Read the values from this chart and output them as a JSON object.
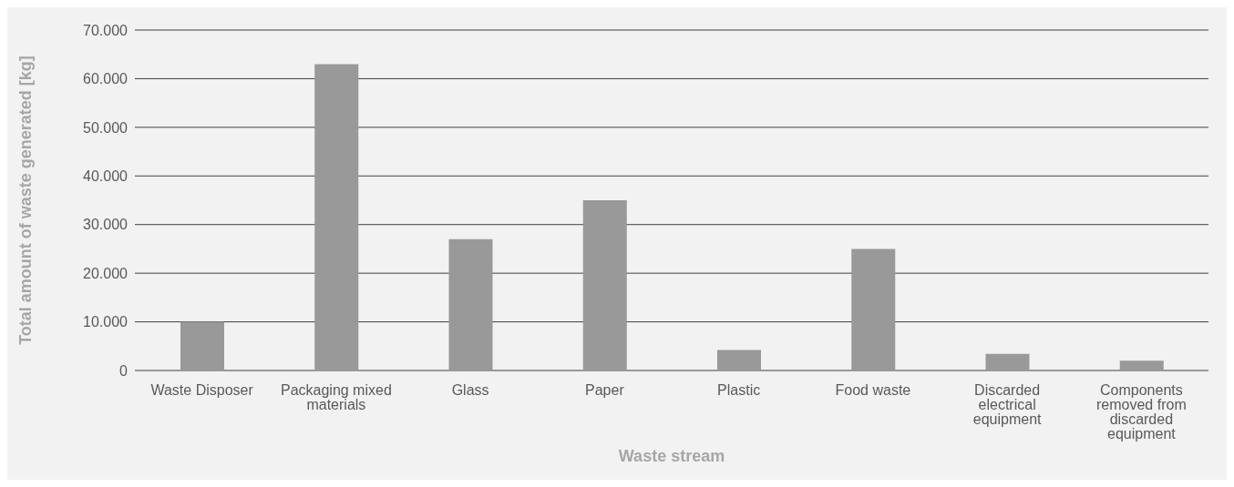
{
  "chart_data": {
    "type": "bar",
    "xlabel": "Waste stream",
    "ylabel": "Total amount of waste generated [kg]",
    "categories": [
      "Waste Disposer",
      "Packaging mixed materials",
      "Glass",
      "Paper",
      "Plastic",
      "Food waste",
      "Discarded electrical equipment",
      "Components removed from discarded equipment"
    ],
    "values": [
      10000,
      63000,
      27000,
      35000,
      4200,
      25000,
      3400,
      2000
    ],
    "color": "#999999",
    "ylim": [
      0,
      70000
    ],
    "yticks": [
      {
        "value": 0,
        "label": "0"
      },
      {
        "value": 10000,
        "label": "10.000"
      },
      {
        "value": 20000,
        "label": "20.000"
      },
      {
        "value": 30000,
        "label": "30.000"
      },
      {
        "value": 40000,
        "label": "40.000"
      },
      {
        "value": 50000,
        "label": "50.000"
      },
      {
        "value": 60000,
        "label": "60.000"
      },
      {
        "value": 70000,
        "label": "70.000"
      }
    ],
    "grid": "y",
    "legend": false
  }
}
